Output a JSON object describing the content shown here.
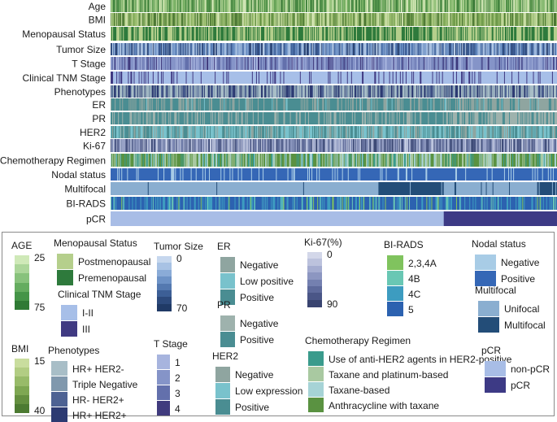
{
  "chart_data": {
    "type": "heatmap",
    "rows": [
      {
        "label": "Age",
        "kind": "continuous",
        "palette": "age_rows"
      },
      {
        "label": "BMI",
        "kind": "continuous",
        "palette": "bmi_rows"
      },
      {
        "label": "Menopausal Status",
        "kind": "categorical",
        "palette": "menopausal",
        "weights": [
          0.45,
          0.55
        ]
      },
      {
        "label": "Tumor Size",
        "kind": "continuous",
        "palette": "tumor_rows"
      },
      {
        "label": "T Stage",
        "kind": "categorical",
        "palette": "tstage",
        "weights": [
          0.2,
          0.5,
          0.2,
          0.1
        ]
      },
      {
        "label": "Clinical TNM Stage",
        "kind": "categorical",
        "palette": "tnm",
        "weights": [
          0.85,
          0.15
        ]
      },
      {
        "label": "Phenotypes",
        "kind": "categorical",
        "palette": "phenotypes",
        "weights": [
          0.4,
          0.2,
          0.15,
          0.25
        ]
      },
      {
        "label": "ER",
        "kind": "segments",
        "palette": "er",
        "segments": [
          [
            0.0,
            0.75,
            [
              0.25,
              0.05,
              0.7
            ]
          ],
          [
            0.75,
            1.0,
            [
              0.55,
              0.1,
              0.35
            ]
          ]
        ]
      },
      {
        "label": "PR",
        "kind": "segments",
        "palette": "pr",
        "segments": [
          [
            0.0,
            0.75,
            [
              0.3,
              0.7
            ]
          ],
          [
            0.75,
            1.0,
            [
              0.6,
              0.4
            ]
          ]
        ]
      },
      {
        "label": "HER2",
        "kind": "categorical",
        "palette": "her2",
        "weights": [
          0.2,
          0.45,
          0.35
        ]
      },
      {
        "label": "Ki-67",
        "kind": "continuous",
        "palette": "ki67_rows"
      },
      {
        "label": "Chemotherapy Regimen",
        "kind": "categorical",
        "palette": "chemo",
        "weights": [
          0.15,
          0.25,
          0.2,
          0.4
        ]
      },
      {
        "label": "Nodal status",
        "kind": "categorical",
        "palette": "nodal",
        "weights": [
          0.12,
          0.88
        ]
      },
      {
        "label": "Multifocal",
        "kind": "segments",
        "palette": "multifocal",
        "segments": [
          [
            0.0,
            0.6,
            [
              0.98,
              0.02
            ]
          ],
          [
            0.6,
            0.745,
            [
              0.02,
              0.98
            ]
          ],
          [
            0.745,
            0.955,
            [
              0.98,
              0.02
            ]
          ],
          [
            0.955,
            1.0,
            [
              0.05,
              0.95
            ]
          ]
        ]
      },
      {
        "label": "BI-RADS",
        "kind": "categorical",
        "palette": "birads",
        "weights": [
          0.05,
          0.1,
          0.25,
          0.6
        ]
      },
      {
        "label": "pCR",
        "kind": "segments",
        "palette": "pcr",
        "segments": [
          [
            0.0,
            0.745,
            [
              1.0,
              0.0
            ]
          ],
          [
            0.745,
            1.0,
            [
              0.0,
              1.0
            ]
          ]
        ]
      }
    ],
    "n_samples": 540,
    "palettes": {
      "age_rows": [
        "#cfe4b4",
        "#b4d497",
        "#94c27b",
        "#73ad60",
        "#51924a",
        "#3a7a38"
      ],
      "bmi_rows": [
        "#cde0aa",
        "#b5cf8c",
        "#9bbd70",
        "#7fa957",
        "#638f43",
        "#4c7834"
      ],
      "menopausal": [
        "#b5cf8c",
        "#2e7a3c"
      ],
      "tumor_rows": [
        "#b7cce6",
        "#9cb7dc",
        "#80a1cf",
        "#6489bf",
        "#4c70a8",
        "#3a5990",
        "#2c4473"
      ],
      "tstage": [
        "#a7b4de",
        "#8594c8",
        "#6370ac",
        "#403b7e"
      ],
      "tnm": [
        "#a7bfe8",
        "#403a82"
      ],
      "phenotypes": [
        "#a8bec7",
        "#8098ad",
        "#4d6293",
        "#2c3a72"
      ],
      "er": [
        "#8fa5a0",
        "#79c2cc",
        "#4a8d92"
      ],
      "pr": [
        "#9eb2ad",
        "#4a8d92"
      ],
      "her2": [
        "#8fa5a0",
        "#79c2cc",
        "#4a8d92"
      ],
      "ki67_rows": [
        "#c5cce2",
        "#a8b1d1",
        "#8a95bd",
        "#6f7ca8",
        "#56628f",
        "#3d4a76"
      ],
      "chemo": [
        "#3a9b8c",
        "#a9c9a1",
        "#a6d3d6",
        "#5a9241"
      ],
      "nodal": [
        "#a8cce6",
        "#3567b6"
      ],
      "multifocal": [
        "#8aaed0",
        "#234d78"
      ],
      "birads": [
        "#80c35e",
        "#69c7b4",
        "#3d9cc0",
        "#2c62b0"
      ],
      "pcr": [
        "#a8bde6",
        "#3d3a85"
      ]
    },
    "legends": [
      {
        "title": "AGE",
        "type": "gradient",
        "min_label": "25",
        "max_label": "75",
        "colors": [
          "#cfe9b8",
          "#acd69a",
          "#88c27c",
          "#65ac5f",
          "#459447",
          "#2f7a34"
        ]
      },
      {
        "title": "BMI",
        "type": "gradient",
        "min_label": "15",
        "max_label": "40",
        "colors": [
          "#c9dd9e",
          "#b2cd83",
          "#98bb69",
          "#7ea752",
          "#648f3f",
          "#4c7a31"
        ]
      },
      {
        "title": "Menopausal Status",
        "type": "categorical",
        "items": [
          {
            "label": "Postmenopausal",
            "color": "#b5cf8c"
          },
          {
            "label": "Premenopausal",
            "color": "#2e7a3c"
          }
        ]
      },
      {
        "title": "Clinical TNM Stage",
        "type": "categorical",
        "items": [
          {
            "label": "I-II",
            "color": "#a7bfe8"
          },
          {
            "label": "III",
            "color": "#403a82"
          }
        ]
      },
      {
        "title": "Phenotypes",
        "type": "categorical",
        "items": [
          {
            "label": "HR+ HER2-",
            "color": "#a8bec7"
          },
          {
            "label": "Triple Negative",
            "color": "#8098ad"
          },
          {
            "label": "HR- HER2+",
            "color": "#4d6293"
          },
          {
            "label": "HR+ HER2+",
            "color": "#2c3a72"
          }
        ]
      },
      {
        "title": "Tumor Size",
        "type": "gradient",
        "min_label": "0",
        "max_label": "70",
        "colors": [
          "#c6d7ee",
          "#a8c2e4",
          "#8aabd7",
          "#6d92c6",
          "#5479b0",
          "#3d5f96",
          "#2d4a7c",
          "#203a66"
        ]
      },
      {
        "title": "T Stage",
        "type": "categorical",
        "items": [
          {
            "label": "1",
            "color": "#a7b4de"
          },
          {
            "label": "2",
            "color": "#8594c8"
          },
          {
            "label": "3",
            "color": "#6370ac"
          },
          {
            "label": "4",
            "color": "#403b7e"
          }
        ]
      },
      {
        "title": "ER",
        "type": "categorical",
        "items": [
          {
            "label": "Negative",
            "color": "#8fa5a0"
          },
          {
            "label": "Low positive",
            "color": "#79c2cc"
          },
          {
            "label": "Positive",
            "color": "#4a8d92"
          }
        ]
      },
      {
        "title": "PR",
        "type": "categorical",
        "items": [
          {
            "label": "Negative",
            "color": "#9eb2ad"
          },
          {
            "label": "Positive",
            "color": "#4a8d92"
          }
        ]
      },
      {
        "title": "HER2",
        "type": "categorical",
        "items": [
          {
            "label": "Negative",
            "color": "#8fa5a0"
          },
          {
            "label": "Low expression",
            "color": "#79c2cc"
          },
          {
            "label": "Positive",
            "color": "#4a8d92"
          }
        ]
      },
      {
        "title": "Ki-67(%)",
        "type": "gradient",
        "min_label": "0",
        "max_label": "90",
        "colors": [
          "#d3d7e9",
          "#bcc2dd",
          "#a4acd0",
          "#8c96c1",
          "#7480b0",
          "#5e6a9c",
          "#4a5687",
          "#394470"
        ]
      },
      {
        "title": "BI-RADS",
        "type": "categorical",
        "items": [
          {
            "label": "2,3,4A",
            "color": "#80c35e"
          },
          {
            "label": "4B",
            "color": "#69c7b4"
          },
          {
            "label": "4C",
            "color": "#3d9cc0"
          },
          {
            "label": "5",
            "color": "#2c62b0"
          }
        ]
      },
      {
        "title": "Chemotherapy Regimen",
        "type": "categorical",
        "items": [
          {
            "label": "Use of anti-HER2 agents in HER2-positive",
            "color": "#3a9b8c"
          },
          {
            "label": "Taxane and platinum-based",
            "color": "#a9c9a1"
          },
          {
            "label": "Taxane-based",
            "color": "#a6d3d6"
          },
          {
            "label": "Anthracycline with taxane",
            "color": "#5a9241"
          }
        ]
      },
      {
        "title": "Nodal status",
        "type": "categorical",
        "items": [
          {
            "label": "Negative",
            "color": "#a8cce6"
          },
          {
            "label": "Positive",
            "color": "#3567b6"
          }
        ]
      },
      {
        "title": "Multifocal",
        "type": "categorical",
        "items": [
          {
            "label": "Unifocal",
            "color": "#8aaed0"
          },
          {
            "label": "Multifocal",
            "color": "#234d78"
          }
        ]
      },
      {
        "title": "pCR",
        "type": "categorical",
        "items": [
          {
            "label": "non-pCR",
            "color": "#a8bde6"
          },
          {
            "label": "pCR",
            "color": "#3d3a85"
          }
        ]
      }
    ]
  }
}
